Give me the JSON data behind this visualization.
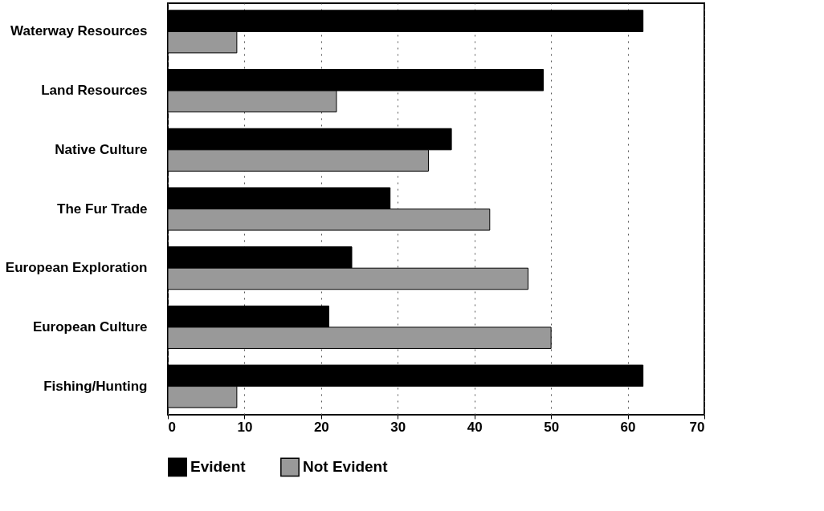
{
  "chart_data": {
    "type": "bar",
    "orientation": "horizontal",
    "categories": [
      "Waterway Resources",
      "Land Resources",
      "Native Culture",
      "The Fur Trade",
      "European Exploration",
      "European Culture",
      "Fishing/Hunting"
    ],
    "series": [
      {
        "name": "Evident",
        "color": "#000000",
        "values": [
          62,
          49,
          37,
          29,
          24,
          21,
          62
        ]
      },
      {
        "name": "Not Evident",
        "color": "#999999",
        "values": [
          9,
          22,
          34,
          42,
          47,
          50,
          9
        ]
      }
    ],
    "xlim": [
      0,
      70
    ],
    "xticks": [
      0,
      10,
      20,
      30,
      40,
      50,
      60,
      70
    ],
    "grid": "x",
    "legend": "bottom"
  }
}
